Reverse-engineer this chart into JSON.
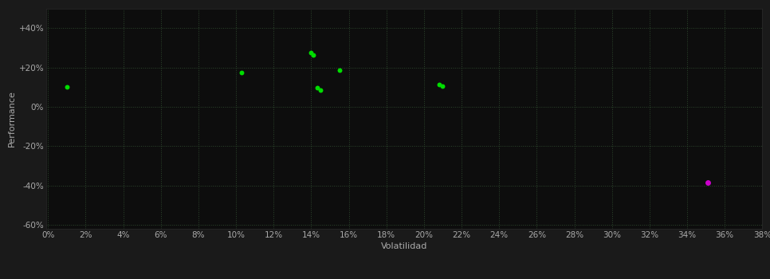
{
  "green_points": [
    [
      0.01,
      0.1
    ],
    [
      0.103,
      0.175
    ],
    [
      0.14,
      0.275
    ],
    [
      0.141,
      0.265
    ],
    [
      0.143,
      0.095
    ],
    [
      0.145,
      0.085
    ],
    [
      0.155,
      0.185
    ],
    [
      0.208,
      0.115
    ],
    [
      0.21,
      0.105
    ]
  ],
  "magenta_points": [
    [
      0.351,
      -0.385
    ]
  ],
  "green_color": "#00dd00",
  "magenta_color": "#cc00cc",
  "background_color": "#1a1a1a",
  "plot_bg_color": "#0d0d0d",
  "grid_color": "#2d472d",
  "text_color": "#aaaaaa",
  "xlabel": "Volatilidad",
  "ylabel": "Performance",
  "xlim": [
    -0.001,
    0.38
  ],
  "ylim": [
    -0.62,
    0.5
  ],
  "xticks": [
    0.0,
    0.02,
    0.04,
    0.06,
    0.08,
    0.1,
    0.12,
    0.14,
    0.16,
    0.18,
    0.2,
    0.22,
    0.24,
    0.26,
    0.28,
    0.3,
    0.32,
    0.34,
    0.36,
    0.38
  ],
  "yticks": [
    -0.6,
    -0.4,
    -0.2,
    0.0,
    0.2,
    0.4
  ],
  "marker_size_green": 18,
  "marker_size_magenta": 25,
  "tick_fontsize": 7.5,
  "label_fontsize": 8
}
